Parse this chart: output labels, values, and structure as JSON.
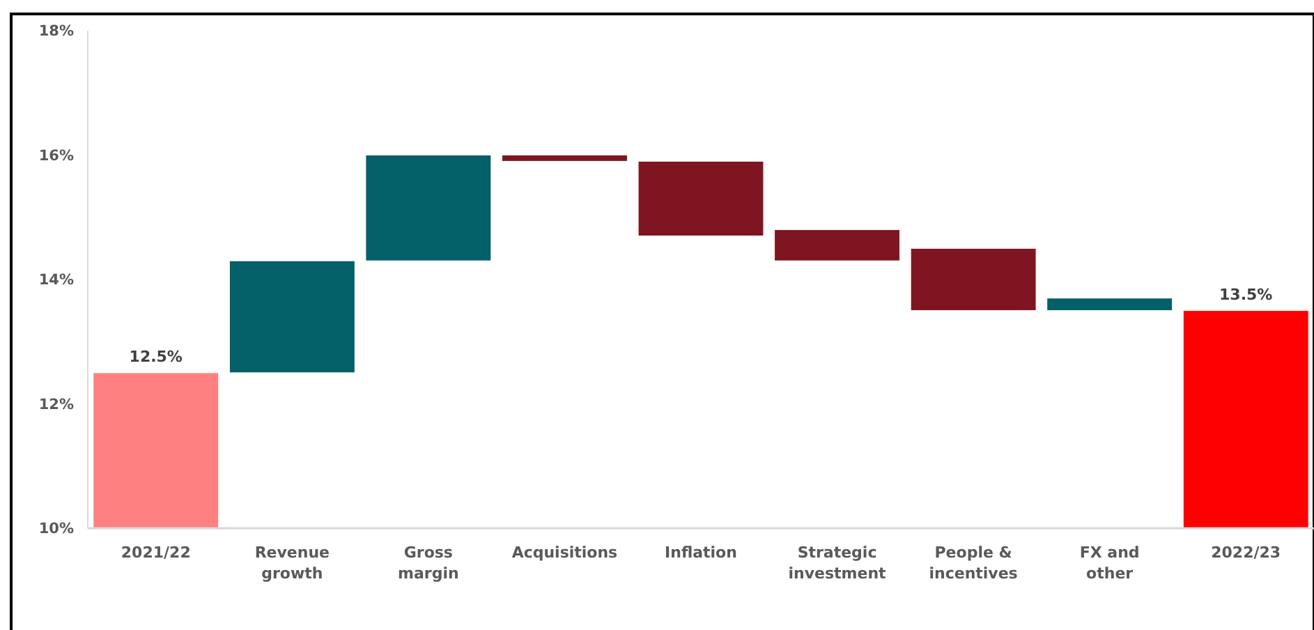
{
  "chart_data": {
    "type": "bar",
    "categories": [
      "2021/22",
      "Revenue growth",
      "Gross margin",
      "Acquisitions",
      "Inflation",
      "Strategic investment",
      "People & incentives",
      "FX and other",
      "2022/23"
    ],
    "values": [
      12.5,
      1.8,
      1.7,
      -0.1,
      -1.2,
      -0.5,
      -1.0,
      0.2,
      13.5
    ],
    "base": [
      null,
      12.5,
      14.3,
      16.0,
      15.9,
      14.8,
      14.5,
      13.5,
      null
    ],
    "colors": [
      "#ff8080",
      "#035f68",
      "#035f68",
      "#7f1520",
      "#7f1520",
      "#7f1520",
      "#7f1520",
      "#035f68",
      "#ff0000"
    ],
    "value_labels": [
      "12.5%",
      null,
      null,
      null,
      null,
      null,
      null,
      null,
      "13.5%"
    ],
    "ylim": [
      10,
      18
    ],
    "yticks": [
      {
        "value": 10,
        "label": "10%"
      },
      {
        "value": 12,
        "label": "12%"
      },
      {
        "value": 14,
        "label": "14%"
      },
      {
        "value": 16,
        "label": "16%"
      },
      {
        "value": 18,
        "label": "18%"
      }
    ],
    "grid": false
  }
}
